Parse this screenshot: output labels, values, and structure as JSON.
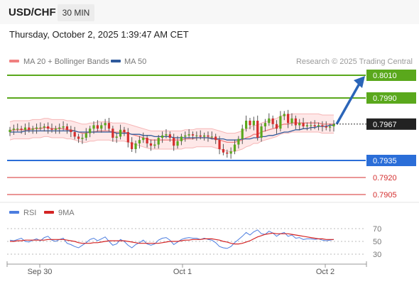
{
  "header": {
    "symbol": "USD/CHF",
    "timeframe": "30 MIN",
    "datetime": "Thursday, October 2, 2025 1:39:47 AM CET"
  },
  "legend": {
    "bollinger": "MA 20 + Bollinger Bands",
    "ma50": "MA 50",
    "credit": "Research © 2025 Trading Central"
  },
  "rsi_legend": {
    "rsi": "RSI",
    "ma9": "9MA"
  },
  "colors": {
    "resistance": "#5aa81c",
    "support": "#2b6ed8",
    "level_red": "#d42e2e",
    "ma20": "#f08080",
    "ma50": "#2f5a9c",
    "rsi": "#4c7ddf",
    "rsi_ma": "#d42424",
    "candle_up": "#5aa81c",
    "candle_down": "#d42e2e",
    "arrow": "#2b65b8",
    "price_tag": "#222222"
  },
  "chart_data": [
    {
      "type": "candlestick",
      "x_ticks": [
        "Sep 30",
        "Oct 1",
        "Oct 2"
      ],
      "current_price": "0.7967",
      "levels": [
        {
          "value": "0.8010",
          "kind": "target",
          "color": "#5aa81c"
        },
        {
          "value": "0.7990",
          "kind": "resistance",
          "color": "#5aa81c"
        },
        {
          "value": "0.7935",
          "kind": "pivot",
          "color": "#2b6ed8"
        },
        {
          "value": "0.7920",
          "kind": "support",
          "color": "#d42e2e"
        },
        {
          "value": "0.7905",
          "kind": "support",
          "color": "#d42e2e"
        }
      ],
      "ylim": [
        0.7897,
        0.8023
      ],
      "closes": [
        0.7962,
        0.7963,
        0.7963,
        0.7962,
        0.7964,
        0.7962,
        0.7963,
        0.7964,
        0.7964,
        0.7965,
        0.7963,
        0.7962,
        0.7963,
        0.7964,
        0.7965,
        0.7962,
        0.796,
        0.7956,
        0.7954,
        0.7955,
        0.7959,
        0.7963,
        0.7966,
        0.7963,
        0.7966,
        0.7968,
        0.7963,
        0.7955,
        0.7956,
        0.7962,
        0.796,
        0.7951,
        0.7945,
        0.795,
        0.7953,
        0.7955,
        0.795,
        0.7948,
        0.7949,
        0.7955,
        0.7957,
        0.7958,
        0.7955,
        0.7948,
        0.7952,
        0.7956,
        0.7957,
        0.7958,
        0.7957,
        0.7957,
        0.7956,
        0.7957,
        0.7956,
        0.7956,
        0.7953,
        0.7945,
        0.7942,
        0.7941,
        0.7943,
        0.7949,
        0.7954,
        0.7963,
        0.797,
        0.7966,
        0.797,
        0.7955,
        0.7965,
        0.7968,
        0.7972,
        0.7967,
        0.7963,
        0.7974,
        0.7976,
        0.7968,
        0.7972,
        0.7966,
        0.7968,
        0.7965,
        0.7966,
        0.7966,
        0.7965,
        0.7966,
        0.7965,
        0.7964,
        0.7965,
        0.7967
      ],
      "ma20": [
        0.7961,
        0.7962,
        0.7962,
        0.7962,
        0.7962,
        0.7962,
        0.7963,
        0.7963,
        0.7963,
        0.7964,
        0.7964,
        0.7963,
        0.7963,
        0.7963,
        0.7963,
        0.7962,
        0.7962,
        0.7961,
        0.796,
        0.7959,
        0.7959,
        0.796,
        0.796,
        0.7961,
        0.7961,
        0.7961,
        0.7961,
        0.796,
        0.796,
        0.796,
        0.796,
        0.7959,
        0.7958,
        0.7957,
        0.7956,
        0.7955,
        0.7954,
        0.7953,
        0.7953,
        0.7953,
        0.7953,
        0.7953,
        0.7953,
        0.7953,
        0.7953,
        0.7953,
        0.7954,
        0.7954,
        0.7954,
        0.7955,
        0.7955,
        0.7955,
        0.7955,
        0.7955,
        0.7954,
        0.7953,
        0.7952,
        0.7951,
        0.7951,
        0.7951,
        0.7952,
        0.7953,
        0.7955,
        0.7956,
        0.7958,
        0.7958,
        0.796,
        0.7961,
        0.7962,
        0.7963,
        0.7964,
        0.7966,
        0.7967,
        0.7967,
        0.7968,
        0.7968,
        0.7968,
        0.7968,
        0.7968,
        0.7968,
        0.7968,
        0.7968,
        0.7967,
        0.7967,
        0.7967,
        0.7967
      ],
      "ma50": [
        0.796,
        0.796,
        0.796,
        0.796,
        0.7961,
        0.7961,
        0.7961,
        0.7961,
        0.7961,
        0.7961,
        0.7961,
        0.7961,
        0.7961,
        0.7961,
        0.7961,
        0.7961,
        0.7961,
        0.7961,
        0.796,
        0.796,
        0.796,
        0.796,
        0.796,
        0.796,
        0.796,
        0.796,
        0.796,
        0.796,
        0.7959,
        0.7959,
        0.7959,
        0.7959,
        0.7958,
        0.7958,
        0.7958,
        0.7957,
        0.7957,
        0.7957,
        0.7956,
        0.7956,
        0.7956,
        0.7956,
        0.7956,
        0.7955,
        0.7955,
        0.7955,
        0.7955,
        0.7955,
        0.7955,
        0.7955,
        0.7955,
        0.7955,
        0.7955,
        0.7954,
        0.7954,
        0.7954,
        0.7954,
        0.7953,
        0.7953,
        0.7953,
        0.7953,
        0.7954,
        0.7954,
        0.7954,
        0.7955,
        0.7955,
        0.7956,
        0.7956,
        0.7957,
        0.7957,
        0.7958,
        0.7959,
        0.796,
        0.796,
        0.7961,
        0.7962,
        0.7962,
        0.7963,
        0.7963,
        0.7964,
        0.7964,
        0.7965,
        0.7965,
        0.7965,
        0.7966,
        0.7966
      ],
      "bb_width": 0.0008,
      "projection": {
        "from": "0.7967",
        "to": "0.8010"
      }
    },
    {
      "type": "line",
      "name": "RSI",
      "y_ticks": [
        70,
        50,
        30
      ],
      "ylim": [
        25,
        75
      ],
      "rsi": [
        52,
        51,
        53,
        55,
        50,
        49,
        52,
        54,
        51,
        56,
        58,
        52,
        50,
        53,
        55,
        47,
        45,
        42,
        40,
        44,
        48,
        53,
        55,
        51,
        54,
        57,
        50,
        44,
        46,
        53,
        50,
        44,
        40,
        45,
        48,
        52,
        46,
        44,
        46,
        52,
        55,
        56,
        52,
        45,
        49,
        53,
        55,
        56,
        55,
        55,
        53,
        55,
        53,
        52,
        48,
        42,
        40,
        39,
        42,
        48,
        53,
        58,
        64,
        60,
        65,
        68,
        62,
        61,
        66,
        63,
        58,
        62,
        64,
        58,
        60,
        55,
        56,
        53,
        54,
        54,
        53,
        54,
        52,
        51,
        52,
        53
      ],
      "ma9": [
        50,
        50,
        51,
        51,
        52,
        52,
        52,
        52,
        52,
        52,
        53,
        53,
        53,
        53,
        53,
        52,
        51,
        50,
        48,
        47,
        47,
        47,
        48,
        48,
        49,
        50,
        51,
        51,
        51,
        51,
        51,
        50,
        49,
        48,
        47,
        47,
        47,
        47,
        47,
        47,
        48,
        49,
        50,
        50,
        50,
        51,
        52,
        52,
        53,
        53,
        53,
        54,
        54,
        54,
        53,
        52,
        50,
        49,
        47,
        46,
        46,
        47,
        49,
        51,
        54,
        57,
        59,
        61,
        62,
        63,
        62,
        62,
        62,
        62,
        61,
        60,
        59,
        58,
        57,
        56,
        55,
        54,
        54,
        53,
        53,
        53
      ]
    }
  ]
}
